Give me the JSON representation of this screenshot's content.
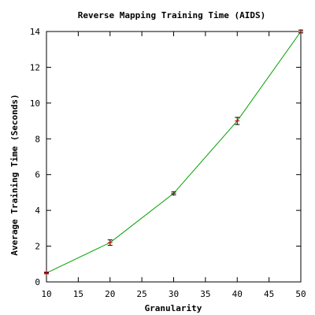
{
  "chart_data": {
    "type": "line",
    "title": "Reverse Mapping Training Time (AIDS)",
    "xlabel": "Granularity",
    "ylabel": "Average Training Time (Seconds)",
    "xlim": [
      10,
      50
    ],
    "ylim": [
      0,
      14
    ],
    "xticks": [
      "10",
      "15",
      "20",
      "25",
      "30",
      "35",
      "40",
      "45",
      "50"
    ],
    "yticks": [
      "0",
      "2",
      "4",
      "6",
      "8",
      "10",
      "12",
      "14"
    ],
    "grid": false,
    "series": [
      {
        "x": [
          10,
          20,
          30,
          40,
          50
        ],
        "y": [
          0.5,
          2.2,
          4.95,
          9.0,
          14.0
        ],
        "err": [
          0.05,
          0.15,
          0.08,
          0.2,
          0.08
        ],
        "line_color": "#00a000",
        "marker_color": "#cc0000"
      }
    ]
  }
}
